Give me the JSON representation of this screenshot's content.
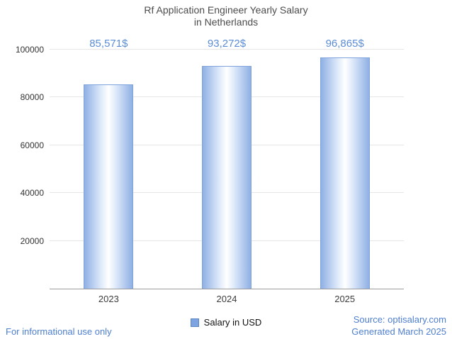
{
  "title": {
    "line1": "Rf Application Engineer Yearly Salary",
    "line2": "in Netherlands"
  },
  "chart_data": {
    "type": "bar",
    "title": "Rf Application Engineer Yearly Salary in Netherlands",
    "categories": [
      "2023",
      "2024",
      "2025"
    ],
    "values": [
      85571,
      93272,
      96865
    ],
    "value_labels": [
      "85,571$",
      "93,272$",
      "96,865$"
    ],
    "xlabel": "",
    "ylabel": "",
    "ylim": [
      0,
      100000
    ],
    "yticks": [
      20000,
      40000,
      60000,
      80000,
      100000
    ],
    "grid": true,
    "legend_position": "bottom-center",
    "series_name": "Salary in USD",
    "bar_color_edge": "#8fb0e4",
    "bar_color_center": "#ffffff"
  },
  "legend": {
    "label": "Salary in USD",
    "swatch_color": "#7da4e0"
  },
  "footer": {
    "left_note": "For informational use only",
    "source": "Source: optisalary.com",
    "generated": "Generated March 2025"
  },
  "colors": {
    "value_label": "#5b8dd6",
    "footer_text": "#4e7fd1",
    "title_text": "#4c4c4c",
    "gridline": "#e6e6e6"
  }
}
